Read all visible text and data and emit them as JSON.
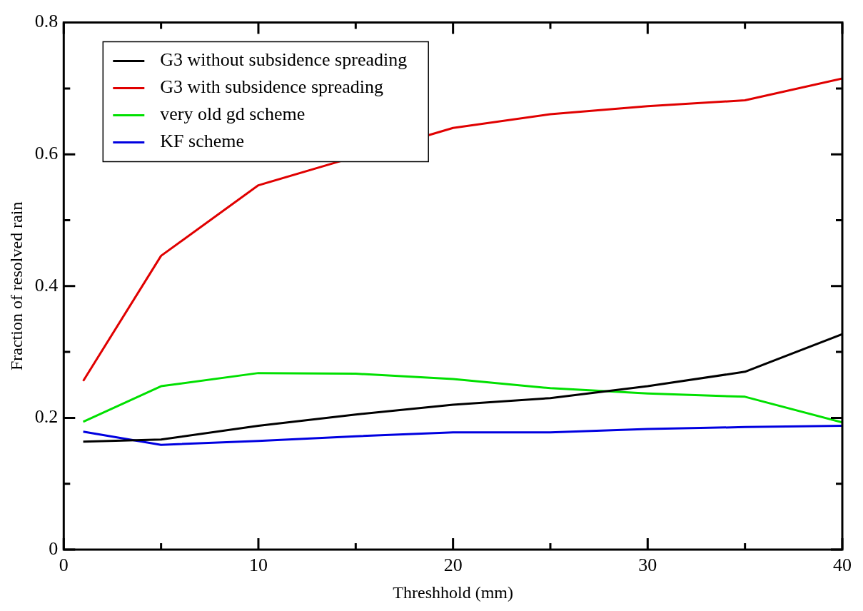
{
  "chart_data": {
    "type": "line",
    "xlabel": "Threshhold (mm)",
    "ylabel": "Fraction of resolved rain",
    "x": [
      1,
      5,
      10,
      15,
      20,
      25,
      30,
      35,
      40
    ],
    "series": [
      {
        "name": "G3 without subsidence spreading",
        "color": "#000000",
        "values": [
          0.164,
          0.167,
          0.188,
          0.205,
          0.22,
          0.23,
          0.248,
          0.27,
          0.327
        ]
      },
      {
        "name": "G3 with subsidence spreading",
        "color": "#e00000",
        "values": [
          0.256,
          0.446,
          0.553,
          null,
          0.64,
          0.661,
          0.673,
          0.682,
          0.715
        ]
      },
      {
        "name": "very old gd scheme",
        "color": "#00e000",
        "values": [
          0.194,
          0.248,
          0.268,
          0.267,
          0.259,
          0.245,
          0.237,
          0.232,
          0.193
        ]
      },
      {
        "name": "KF scheme",
        "color": "#0000e0",
        "values": [
          0.179,
          0.159,
          0.165,
          0.172,
          0.178,
          0.178,
          0.183,
          0.186,
          0.188
        ]
      }
    ],
    "xlim": [
      0,
      40
    ],
    "xticks": [
      0,
      {
        "value": 5,
        "label": null
      },
      10,
      {
        "value": 15,
        "label": null
      },
      20,
      {
        "value": 25,
        "label": null
      },
      30,
      {
        "value": 35,
        "label": null
      },
      40
    ],
    "ylim": [
      0,
      0.8
    ],
    "yticks": [
      0,
      {
        "value": 0.1,
        "label": null
      },
      0.2,
      {
        "value": 0.3,
        "label": null
      },
      0.4,
      {
        "value": 0.5,
        "label": null
      },
      0.6,
      {
        "value": 0.7,
        "label": null
      },
      0.8
    ],
    "grid": false,
    "legend": "top left",
    "marker": "none",
    "line_style": "solid"
  }
}
